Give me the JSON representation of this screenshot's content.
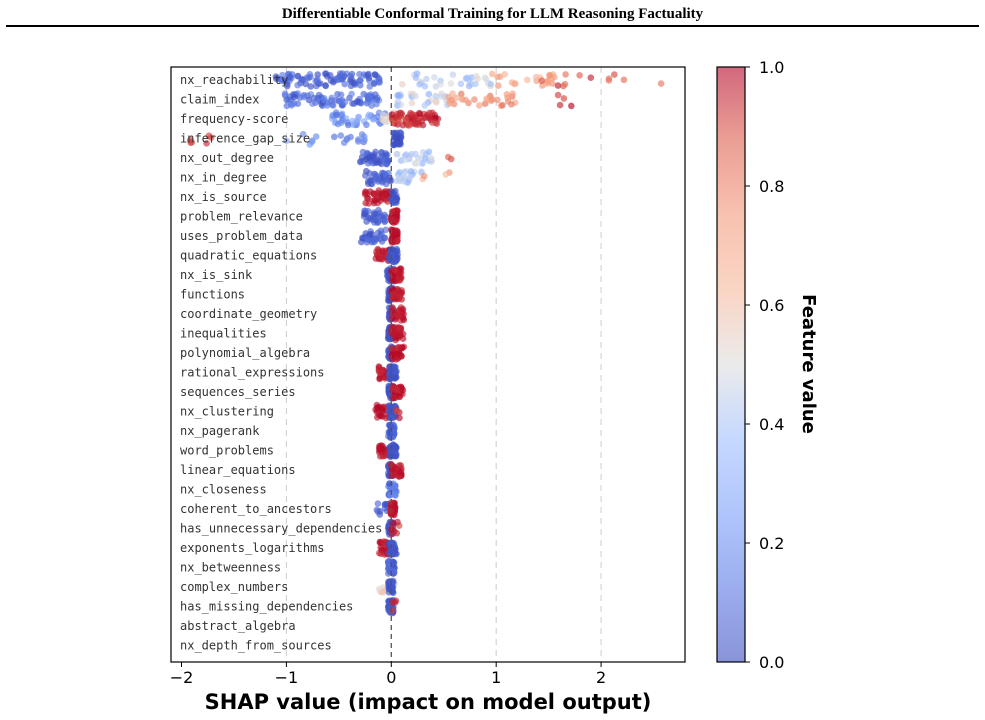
{
  "header": {
    "title": "Differentiable Conformal Training for LLM Reasoning Factuality"
  },
  "chart_data": {
    "type": "scatter",
    "subtype": "shap-beeswarm",
    "xlabel": "SHAP value (impact on model output)",
    "xlim": [
      -2.1,
      2.8
    ],
    "xticks": [
      -2,
      -1,
      0,
      1,
      2
    ],
    "vertical_gridlines": [
      -1,
      1,
      2
    ],
    "zero_line": true,
    "colorbar": {
      "label": "Feature value",
      "range": [
        0,
        1
      ],
      "ticks": [
        "0.0",
        "0.2",
        "0.4",
        "0.6",
        "0.8",
        "1.0"
      ],
      "colormap": "coolwarm",
      "low_color": "#3b4cc0",
      "mid_color": "#dddddd",
      "high_color": "#b40426"
    },
    "features": [
      {
        "name": "nx_reachability",
        "clusters": [
          {
            "min": -1.1,
            "max": -0.1,
            "n": 90,
            "v0": 0.0,
            "v1": 0.15
          },
          {
            "min": 0.05,
            "max": 0.95,
            "n": 30,
            "v0": 0.3,
            "v1": 0.55
          },
          {
            "min": 0.95,
            "max": 1.6,
            "n": 24,
            "v0": 0.6,
            "v1": 0.8
          },
          {
            "min": 1.4,
            "max": 2.6,
            "n": 12,
            "v0": 0.78,
            "v1": 1.0
          }
        ]
      },
      {
        "name": "claim_index",
        "clusters": [
          {
            "min": -1.05,
            "max": -0.1,
            "n": 85,
            "v0": 0.0,
            "v1": 0.18
          },
          {
            "min": 0.05,
            "max": 0.55,
            "n": 25,
            "v0": 0.3,
            "v1": 0.55
          },
          {
            "min": 0.5,
            "max": 1.2,
            "n": 30,
            "v0": 0.65,
            "v1": 0.85
          },
          {
            "min": 1.5,
            "max": 1.75,
            "n": 4,
            "v0": 0.9,
            "v1": 1.0
          }
        ]
      },
      {
        "name": "frequency-score",
        "clusters": [
          {
            "min": -0.6,
            "max": -0.05,
            "n": 40,
            "v0": 0.1,
            "v1": 0.35
          },
          {
            "min": -0.1,
            "max": 0.05,
            "n": 10,
            "v0": 0.5,
            "v1": 0.6
          },
          {
            "min": 0.0,
            "max": 0.45,
            "n": 70,
            "v0": 0.88,
            "v1": 1.0
          }
        ]
      },
      {
        "name": "inference_gap_size",
        "clusters": [
          {
            "min": -2.0,
            "max": -1.7,
            "n": 6,
            "v0": 0.8,
            "v1": 0.95
          },
          {
            "min": -1.0,
            "max": -0.7,
            "n": 6,
            "v0": 0.15,
            "v1": 0.3
          },
          {
            "min": -0.55,
            "max": -0.25,
            "n": 12,
            "v0": 0.1,
            "v1": 0.2
          },
          {
            "min": 0.02,
            "max": 0.1,
            "n": 40,
            "v0": 0.0,
            "v1": 0.05
          }
        ]
      },
      {
        "name": "nx_out_degree",
        "clusters": [
          {
            "min": -0.3,
            "max": -0.02,
            "n": 45,
            "v0": 0.0,
            "v1": 0.1
          },
          {
            "min": 0.05,
            "max": 0.4,
            "n": 25,
            "v0": 0.3,
            "v1": 0.5
          },
          {
            "min": 0.45,
            "max": 0.6,
            "n": 2,
            "v0": 0.7,
            "v1": 1.0
          }
        ]
      },
      {
        "name": "nx_in_degree",
        "clusters": [
          {
            "min": -0.25,
            "max": 0.0,
            "n": 35,
            "v0": 0.0,
            "v1": 0.1
          },
          {
            "min": 0.05,
            "max": 0.3,
            "n": 20,
            "v0": 0.3,
            "v1": 0.5
          },
          {
            "min": 0.3,
            "max": 0.65,
            "n": 4,
            "v0": 0.6,
            "v1": 0.8
          }
        ]
      },
      {
        "name": "nx_is_source",
        "clusters": [
          {
            "min": -0.25,
            "max": 0.0,
            "n": 40,
            "v0": 0.95,
            "v1": 1.0
          },
          {
            "min": 0.0,
            "max": 0.06,
            "n": 25,
            "v0": 0.0,
            "v1": 0.05
          }
        ]
      },
      {
        "name": "problem_relevance",
        "clusters": [
          {
            "min": -0.28,
            "max": -0.05,
            "n": 30,
            "v0": 0.0,
            "v1": 0.1
          },
          {
            "min": 0.0,
            "max": 0.06,
            "n": 40,
            "v0": 0.95,
            "v1": 1.0
          }
        ]
      },
      {
        "name": "uses_problem_data",
        "clusters": [
          {
            "min": -0.3,
            "max": -0.05,
            "n": 30,
            "v0": 0.0,
            "v1": 0.1
          },
          {
            "min": 0.0,
            "max": 0.06,
            "n": 40,
            "v0": 0.95,
            "v1": 1.0
          }
        ]
      },
      {
        "name": "quadratic_equations",
        "clusters": [
          {
            "min": -0.15,
            "max": -0.01,
            "n": 30,
            "v0": 0.95,
            "v1": 1.0
          },
          {
            "min": -0.02,
            "max": 0.06,
            "n": 40,
            "v0": 0.0,
            "v1": 0.05
          }
        ]
      },
      {
        "name": "nx_is_sink",
        "clusters": [
          {
            "min": -0.04,
            "max": 0.03,
            "n": 35,
            "v0": 0.0,
            "v1": 0.05
          },
          {
            "min": 0.0,
            "max": 0.1,
            "n": 35,
            "v0": 0.95,
            "v1": 1.0
          }
        ]
      },
      {
        "name": "functions",
        "clusters": [
          {
            "min": -0.03,
            "max": 0.02,
            "n": 35,
            "v0": 0.0,
            "v1": 0.05
          },
          {
            "min": 0.0,
            "max": 0.1,
            "n": 30,
            "v0": 0.95,
            "v1": 1.0
          }
        ]
      },
      {
        "name": "coordinate_geometry",
        "clusters": [
          {
            "min": -0.03,
            "max": 0.02,
            "n": 35,
            "v0": 0.0,
            "v1": 0.05
          },
          {
            "min": 0.0,
            "max": 0.12,
            "n": 30,
            "v0": 0.95,
            "v1": 1.0
          }
        ]
      },
      {
        "name": "inequalities",
        "clusters": [
          {
            "min": -0.03,
            "max": 0.02,
            "n": 35,
            "v0": 0.0,
            "v1": 0.05
          },
          {
            "min": 0.0,
            "max": 0.12,
            "n": 30,
            "v0": 0.95,
            "v1": 1.0
          }
        ]
      },
      {
        "name": "polynomial_algebra",
        "clusters": [
          {
            "min": -0.03,
            "max": 0.02,
            "n": 35,
            "v0": 0.0,
            "v1": 0.05
          },
          {
            "min": 0.0,
            "max": 0.12,
            "n": 30,
            "v0": 0.95,
            "v1": 1.0
          }
        ]
      },
      {
        "name": "rational_expressions",
        "clusters": [
          {
            "min": -0.12,
            "max": -0.01,
            "n": 25,
            "v0": 0.95,
            "v1": 1.0
          },
          {
            "min": -0.02,
            "max": 0.05,
            "n": 40,
            "v0": 0.0,
            "v1": 0.05
          }
        ]
      },
      {
        "name": "sequences_series",
        "clusters": [
          {
            "min": -0.03,
            "max": 0.02,
            "n": 35,
            "v0": 0.0,
            "v1": 0.05
          },
          {
            "min": 0.0,
            "max": 0.12,
            "n": 25,
            "v0": 0.95,
            "v1": 1.0
          }
        ]
      },
      {
        "name": "nx_clustering",
        "clusters": [
          {
            "min": -0.15,
            "max": -0.01,
            "n": 25,
            "v0": 0.95,
            "v1": 1.0
          },
          {
            "min": -0.02,
            "max": 0.05,
            "n": 35,
            "v0": 0.0,
            "v1": 0.05
          },
          {
            "min": 0.03,
            "max": 0.08,
            "n": 4,
            "v0": 0.9,
            "v1": 1.0
          }
        ]
      },
      {
        "name": "nx_pagerank",
        "clusters": [
          {
            "min": -0.03,
            "max": 0.03,
            "n": 45,
            "v0": 0.0,
            "v1": 0.15
          }
        ]
      },
      {
        "name": "word_problems",
        "clusters": [
          {
            "min": -0.12,
            "max": -0.01,
            "n": 25,
            "v0": 0.95,
            "v1": 1.0
          },
          {
            "min": -0.02,
            "max": 0.05,
            "n": 40,
            "v0": 0.0,
            "v1": 0.05
          }
        ]
      },
      {
        "name": "linear_equations",
        "clusters": [
          {
            "min": -0.03,
            "max": 0.02,
            "n": 35,
            "v0": 0.0,
            "v1": 0.05
          },
          {
            "min": 0.0,
            "max": 0.1,
            "n": 30,
            "v0": 0.95,
            "v1": 1.0
          }
        ]
      },
      {
        "name": "nx_closeness",
        "clusters": [
          {
            "min": -0.03,
            "max": 0.05,
            "n": 45,
            "v0": 0.0,
            "v1": 0.3
          }
        ]
      },
      {
        "name": "coherent_to_ancestors",
        "clusters": [
          {
            "min": -0.15,
            "max": -0.02,
            "n": 12,
            "v0": 0.0,
            "v1": 0.1
          },
          {
            "min": -0.01,
            "max": 0.04,
            "n": 40,
            "v0": 0.95,
            "v1": 1.0
          }
        ]
      },
      {
        "name": "has_unnecessary_dependencies",
        "clusters": [
          {
            "min": -0.03,
            "max": 0.02,
            "n": 40,
            "v0": 0.0,
            "v1": 0.05
          },
          {
            "min": 0.0,
            "max": 0.08,
            "n": 8,
            "v0": 0.9,
            "v1": 1.0
          }
        ]
      },
      {
        "name": "exponents_logarithms",
        "clusters": [
          {
            "min": -0.12,
            "max": -0.01,
            "n": 25,
            "v0": 0.95,
            "v1": 1.0
          },
          {
            "min": -0.02,
            "max": 0.05,
            "n": 40,
            "v0": 0.0,
            "v1": 0.05
          }
        ]
      },
      {
        "name": "nx_betweenness",
        "clusters": [
          {
            "min": -0.03,
            "max": 0.03,
            "n": 45,
            "v0": 0.0,
            "v1": 0.15
          }
        ]
      },
      {
        "name": "complex_numbers",
        "clusters": [
          {
            "min": -0.12,
            "max": 0.04,
            "n": 12,
            "v0": 0.45,
            "v1": 0.6
          },
          {
            "min": -0.03,
            "max": 0.02,
            "n": 30,
            "v0": 0.0,
            "v1": 0.05
          }
        ]
      },
      {
        "name": "has_missing_dependencies",
        "clusters": [
          {
            "min": -0.03,
            "max": 0.02,
            "n": 40,
            "v0": 0.0,
            "v1": 0.05
          },
          {
            "min": 0.0,
            "max": 0.05,
            "n": 4,
            "v0": 0.9,
            "v1": 1.0
          }
        ]
      },
      {
        "name": "abstract_algebra",
        "clusters": []
      },
      {
        "name": "nx_depth_from_sources",
        "clusters": []
      }
    ]
  }
}
